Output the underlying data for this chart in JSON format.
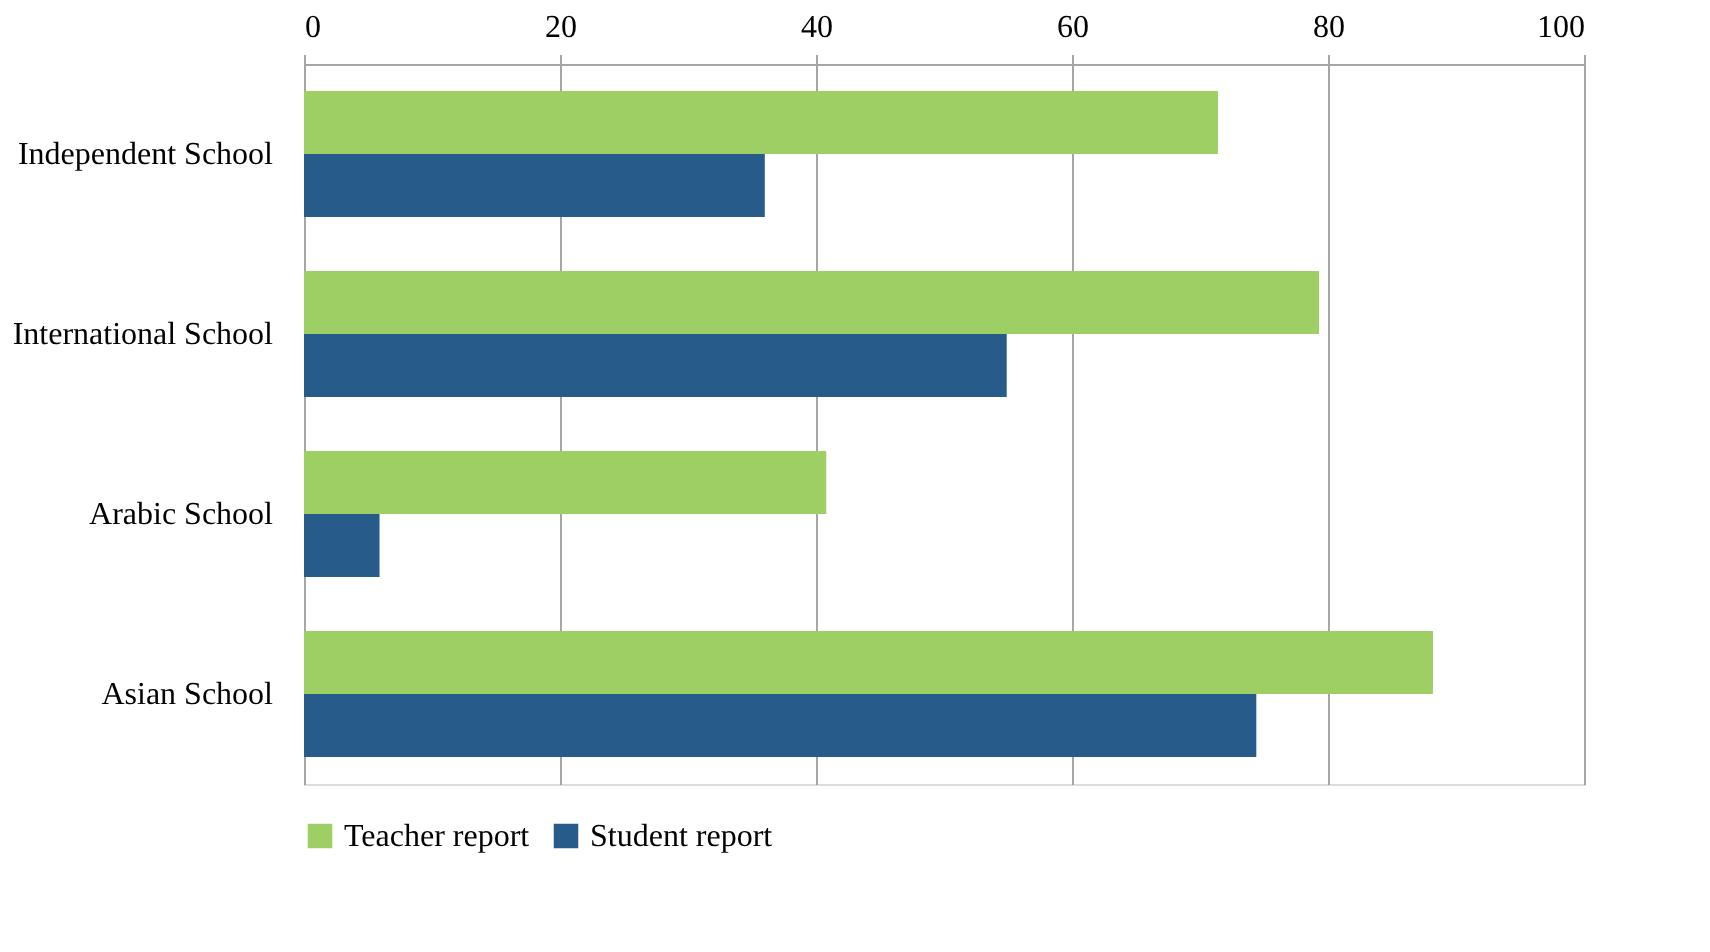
{
  "chart_data": {
    "type": "bar",
    "orientation": "horizontal",
    "categories": [
      "Independent School",
      "International School",
      "Arabic School",
      "Asian School"
    ],
    "series": [
      {
        "name": "Teacher report",
        "color": "#9dcf65",
        "values": [
          71.4,
          79.3,
          40.8,
          88.2
        ]
      },
      {
        "name": "Student report",
        "color": "#265b8a",
        "values": [
          36.0,
          54.9,
          5.9,
          74.4
        ]
      }
    ],
    "xlim": [
      0,
      100
    ],
    "xticks": [
      0,
      20,
      40,
      60,
      80,
      100
    ],
    "grid": "x",
    "legend": "bottom"
  }
}
